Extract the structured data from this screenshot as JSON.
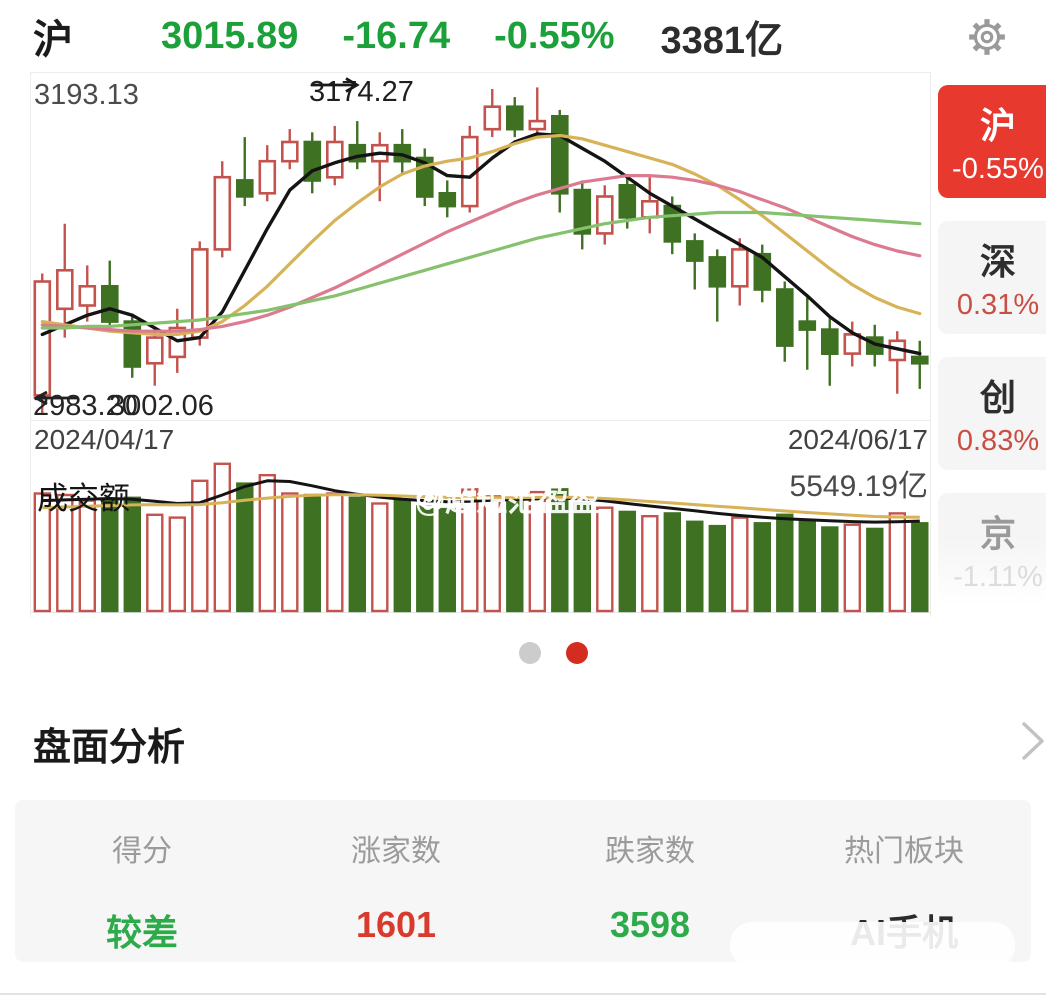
{
  "header": {
    "index_name": "沪",
    "price": "3015.89",
    "change": "-16.74",
    "change_pct": "-0.55%",
    "turnover": "3381亿",
    "price_color": "#1ba03a"
  },
  "chart_data": {
    "type": "candlestick+volume",
    "title": "沪 (Shanghai Composite) daily K-line 2024/04/17 - 2024/06/17",
    "annotations": {
      "window_high": "3193.13",
      "peak_price": "3174.27",
      "window_low": "2983.20",
      "low_overlap": "3002.06",
      "date_start": "2024/04/17",
      "date_end": "2024/06/17",
      "volume_title": "成交额",
      "volume_value": "5549.19亿"
    },
    "style": {
      "up_color": "#c3534c",
      "down_color": "#3f7123",
      "candle_width": 15,
      "grid": false,
      "legend": false
    },
    "kline": {
      "price_max": 3195,
      "price_min": 2978,
      "opens": [
        2994,
        3048,
        3050,
        3062,
        3040,
        3014,
        3018,
        3030,
        3085,
        3128,
        3120,
        3140,
        3152,
        3130,
        3150,
        3140,
        3150,
        3142,
        3120,
        3112,
        3160,
        3174,
        3160,
        3168,
        3122,
        3095,
        3125,
        3105,
        3112,
        3090,
        3080,
        3062,
        3082,
        3060,
        3040,
        3035,
        3020,
        3030,
        3016,
        3018
      ],
      "closes": [
        3065,
        3072,
        3062,
        3040,
        3012,
        3030,
        3036,
        3085,
        3130,
        3118,
        3140,
        3152,
        3128,
        3152,
        3140,
        3150,
        3140,
        3118,
        3112,
        3155,
        3174,
        3160,
        3165,
        3120,
        3095,
        3118,
        3105,
        3115,
        3090,
        3078,
        3062,
        3085,
        3060,
        3025,
        3035,
        3020,
        3032,
        3020,
        3028,
        3014
      ],
      "highs": [
        3070,
        3101,
        3075,
        3078,
        3045,
        3036,
        3048,
        3090,
        3140,
        3155,
        3150,
        3160,
        3158,
        3162,
        3165,
        3158,
        3160,
        3148,
        3128,
        3162,
        3185,
        3180,
        3186,
        3172,
        3128,
        3125,
        3132,
        3130,
        3118,
        3095,
        3085,
        3092,
        3088,
        3065,
        3055,
        3042,
        3040,
        3038,
        3034,
        3028
      ],
      "lows": [
        2983,
        3030,
        3040,
        3035,
        3005,
        3000,
        3008,
        3025,
        3080,
        3112,
        3115,
        3135,
        3120,
        3125,
        3135,
        3115,
        3132,
        3112,
        3105,
        3108,
        3155,
        3155,
        3155,
        3108,
        3085,
        3088,
        3098,
        3095,
        3082,
        3060,
        3040,
        3050,
        3052,
        3015,
        3010,
        3000,
        3012,
        3012,
        2995,
        2998
      ]
    },
    "moving_averages": [
      {
        "name": "ma-short-black",
        "color": "#141414",
        "width": 3.4,
        "values": [
          3032,
          3038,
          3044,
          3048,
          3044,
          3036,
          3028,
          3030,
          3046,
          3072,
          3098,
          3122,
          3134,
          3139,
          3143,
          3145,
          3144,
          3139,
          3131,
          3130,
          3142,
          3152,
          3157,
          3156,
          3148,
          3140,
          3130,
          3120,
          3112,
          3104,
          3096,
          3088,
          3080,
          3068,
          3056,
          3043,
          3033,
          3026,
          3023,
          3020
        ]
      },
      {
        "name": "ma-mid-yellow",
        "color": "#d7b257",
        "width": 3.2,
        "values": [
          3040,
          3038,
          3036,
          3034,
          3033,
          3032,
          3032,
          3034,
          3040,
          3050,
          3062,
          3076,
          3090,
          3103,
          3114,
          3124,
          3132,
          3137,
          3140,
          3142,
          3146,
          3151,
          3155,
          3156,
          3154,
          3150,
          3146,
          3142,
          3138,
          3132,
          3125,
          3116,
          3106,
          3095,
          3084,
          3073,
          3063,
          3055,
          3049,
          3045
        ]
      },
      {
        "name": "ma-long-pink",
        "color": "#dc7a90",
        "width": 3.2,
        "values": [
          3038,
          3037,
          3036,
          3035,
          3034,
          3034,
          3034,
          3035,
          3037,
          3040,
          3044,
          3049,
          3055,
          3061,
          3068,
          3075,
          3082,
          3089,
          3096,
          3102,
          3108,
          3114,
          3119,
          3123,
          3127,
          3129,
          3131,
          3131,
          3130,
          3128,
          3125,
          3121,
          3116,
          3111,
          3105,
          3099,
          3093,
          3088,
          3084,
          3081
        ]
      },
      {
        "name": "ma-longest-green",
        "color": "#86c16d",
        "width": 3.2,
        "values": [
          3036,
          3036,
          3037,
          3037,
          3038,
          3039,
          3040,
          3041,
          3043,
          3045,
          3047,
          3050,
          3053,
          3056,
          3060,
          3064,
          3068,
          3072,
          3076,
          3080,
          3084,
          3088,
          3092,
          3095,
          3098,
          3101,
          3103,
          3105,
          3106,
          3107,
          3108,
          3108,
          3108,
          3107,
          3106,
          3105,
          3104,
          3103,
          3102,
          3101
        ]
      }
    ],
    "volume": {
      "unit": "亿",
      "scale_max": 10600,
      "values": [
        8300,
        8200,
        7800,
        7900,
        8000,
        6800,
        6600,
        9200,
        10400,
        9000,
        9600,
        8300,
        8200,
        8300,
        8000,
        7600,
        7800,
        7400,
        7200,
        8600,
        8100,
        7900,
        8400,
        8600,
        7600,
        7300,
        7000,
        6700,
        6900,
        6300,
        6000,
        6600,
        6200,
        6800,
        6400,
        5900,
        6100,
        5800,
        6900,
        6200
      ],
      "moving_averages": [
        {
          "name": "vol-ma-black",
          "color": "#141414",
          "width": 3,
          "values": [
            7800,
            7850,
            7900,
            7950,
            7900,
            7750,
            7600,
            7650,
            8200,
            8800,
            9200,
            9150,
            8850,
            8500,
            8250,
            8050,
            7900,
            7800,
            7720,
            7750,
            7820,
            7880,
            7920,
            7980,
            7920,
            7780,
            7600,
            7420,
            7250,
            7080,
            6900,
            6750,
            6620,
            6520,
            6450,
            6380,
            6320,
            6280,
            6300,
            6350
          ]
        },
        {
          "name": "vol-ma-yellow",
          "color": "#d7b257",
          "width": 3,
          "values": [
            7300,
            7350,
            7400,
            7450,
            7500,
            7520,
            7500,
            7520,
            7650,
            7820,
            7980,
            8100,
            8180,
            8220,
            8220,
            8180,
            8130,
            8080,
            8030,
            8000,
            8000,
            8010,
            8030,
            8050,
            8020,
            7950,
            7850,
            7740,
            7630,
            7520,
            7400,
            7290,
            7180,
            7070,
            6960,
            6860,
            6760,
            6680,
            6640,
            6620
          ]
        }
      ]
    }
  },
  "watermark": "@超短范盈盈",
  "sidebar": {
    "items": [
      {
        "name": "沪",
        "pct": "-0.55%"
      },
      {
        "name": "深",
        "pct": "0.31%"
      },
      {
        "name": "创",
        "pct": "0.83%"
      },
      {
        "name": "京",
        "pct": "-1.11%"
      }
    ]
  },
  "pagination": {
    "count": 2,
    "active_index": 1
  },
  "analysis": {
    "title": "盘面分析",
    "columns": [
      {
        "label": "得分",
        "value": "较差"
      },
      {
        "label": "涨家数",
        "value": "1601"
      },
      {
        "label": "跌家数",
        "value": "3598"
      },
      {
        "label": "热门板块",
        "value": "AI手机"
      }
    ]
  }
}
